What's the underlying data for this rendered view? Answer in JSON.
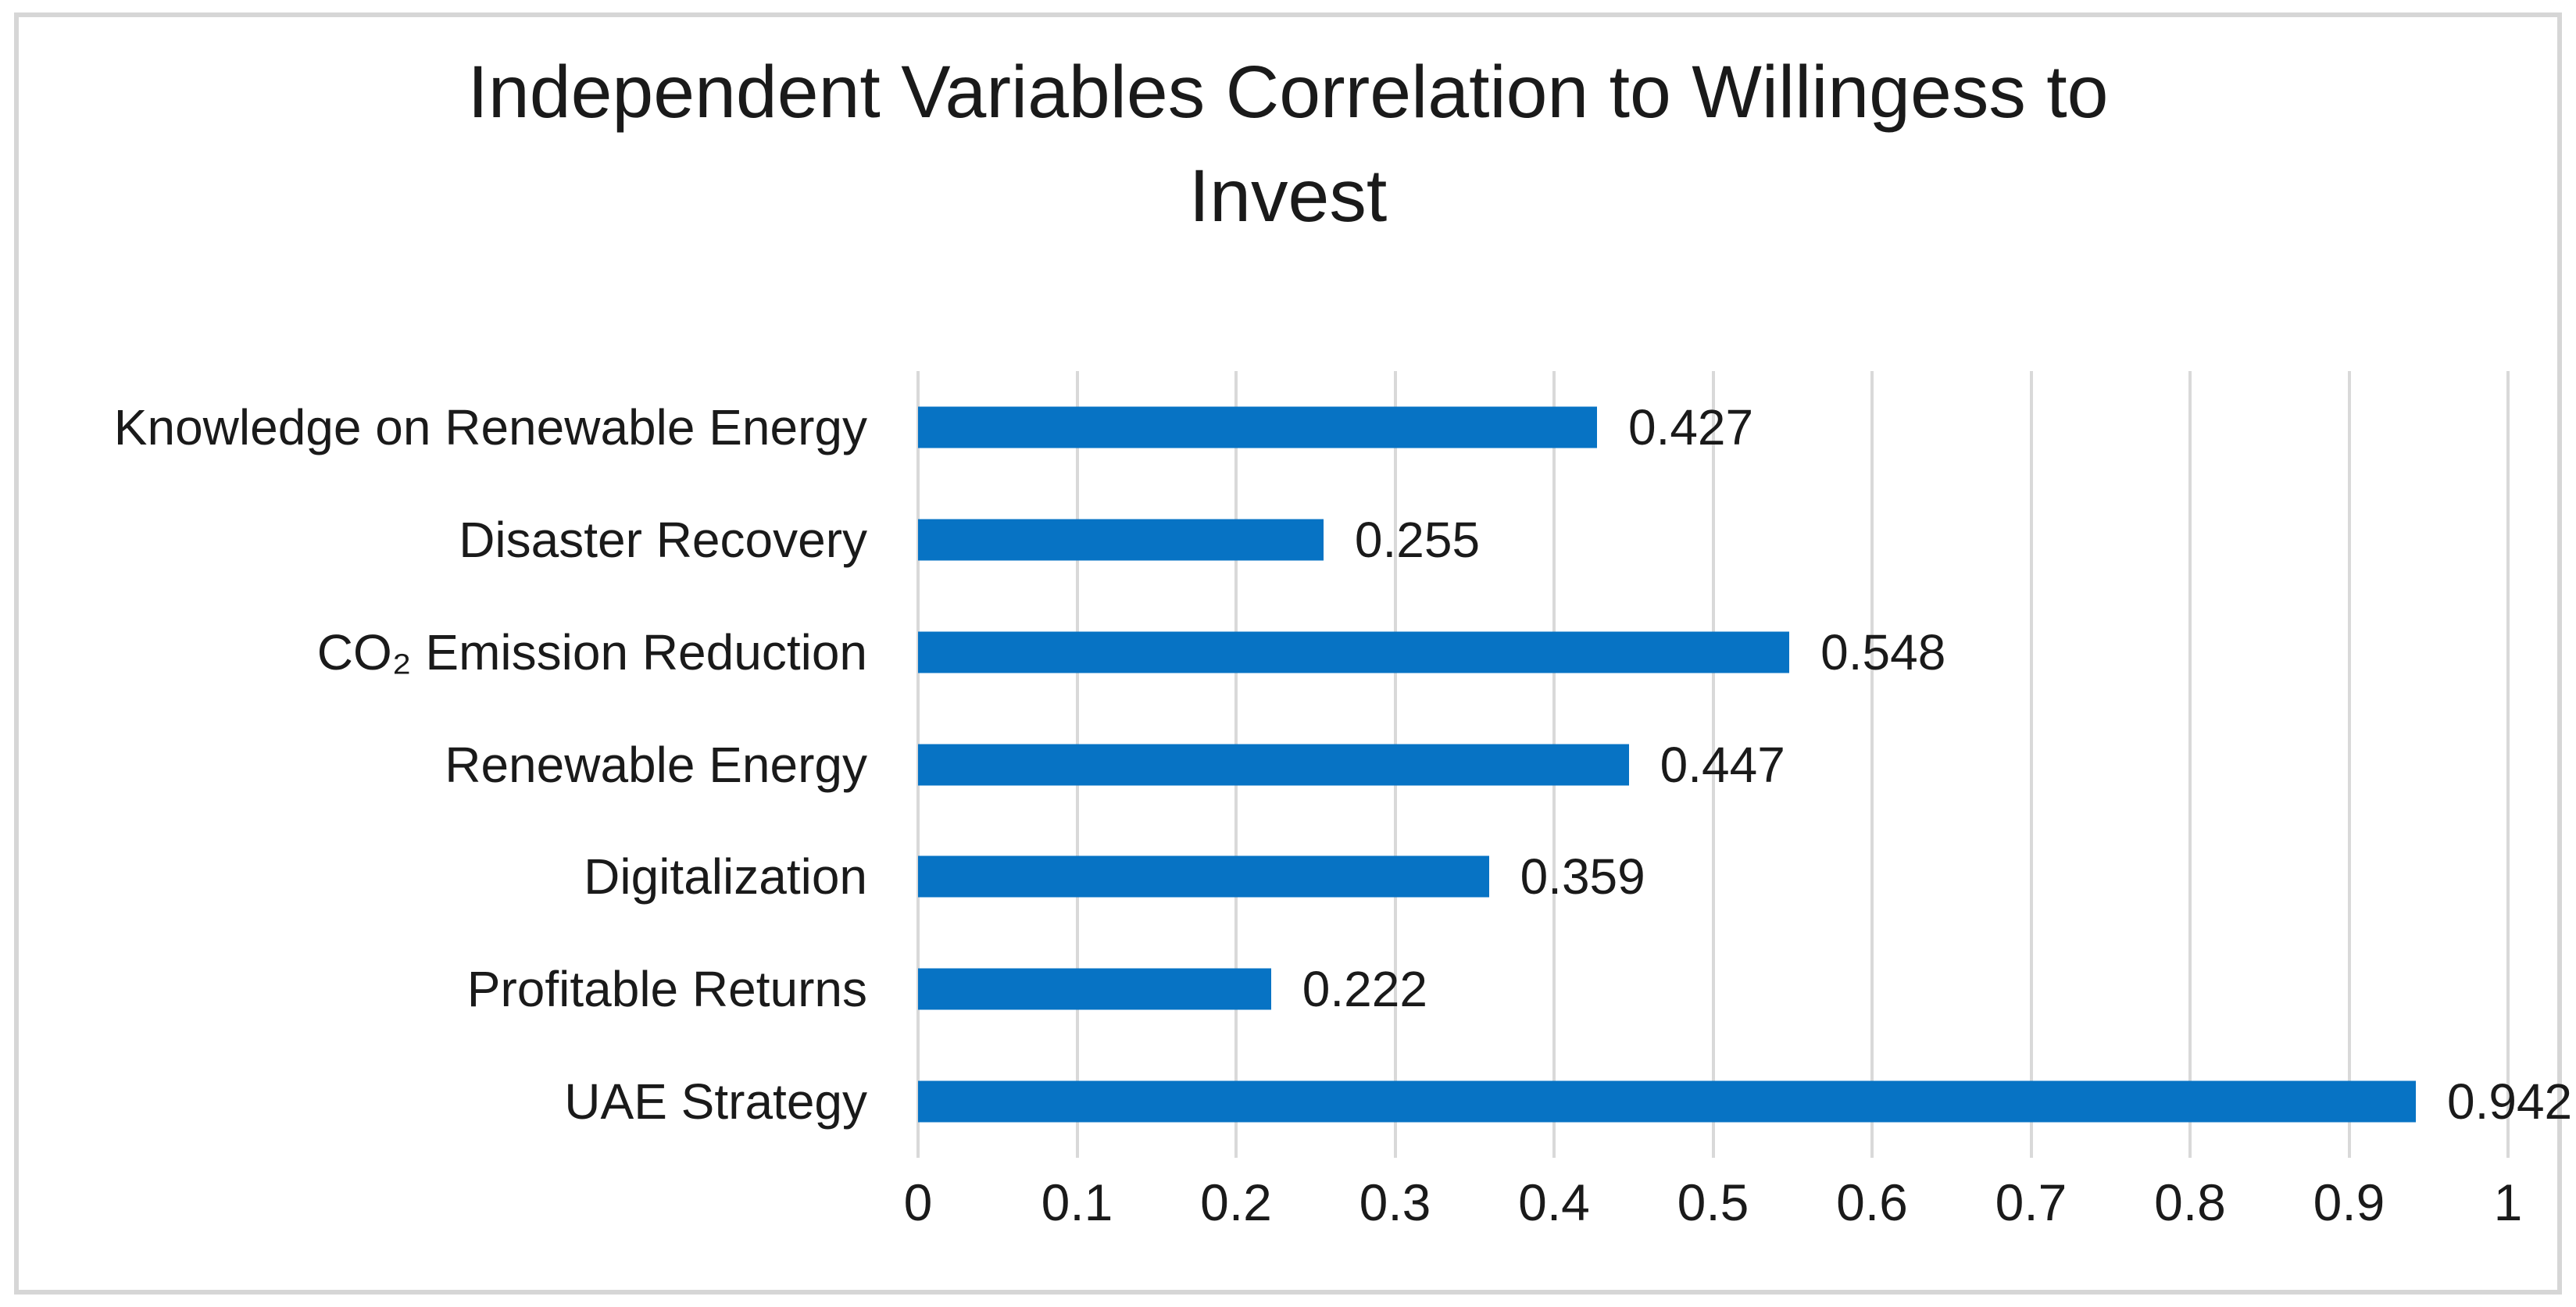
{
  "chart_data": {
    "type": "bar",
    "orientation": "horizontal",
    "title": "Independent Variables Correlation to Willingess to Invest",
    "title_lines": [
      "Independent Variables Correlation to Willingess to",
      "Invest"
    ],
    "categories": [
      "Knowledge on Renewable Energy",
      "Disaster Recovery",
      "CO₂ Emission Reduction",
      "Renewable Energy",
      "Digitalization",
      "Profitable Returns",
      "UAE Strategy"
    ],
    "values": [
      0.427,
      0.255,
      0.548,
      0.447,
      0.359,
      0.222,
      0.942
    ],
    "value_labels": [
      "0.427",
      "0.255",
      "0.548",
      "0.447",
      "0.359",
      "0.222",
      "0.942"
    ],
    "xlabel": "",
    "ylabel": "",
    "xlim": [
      0,
      1
    ],
    "x_ticks": [
      "0",
      "0.1",
      "0.2",
      "0.3",
      "0.4",
      "0.5",
      "0.6",
      "0.7",
      "0.8",
      "0.9",
      "1"
    ],
    "grid": "vertical-gridlines",
    "legend": "none",
    "colors": {
      "bar": "#0773C4",
      "gridline": "#D9D9D9",
      "border": "#D6D6D6",
      "text": "#1A1A1A",
      "background": "#FFFFFF"
    }
  }
}
